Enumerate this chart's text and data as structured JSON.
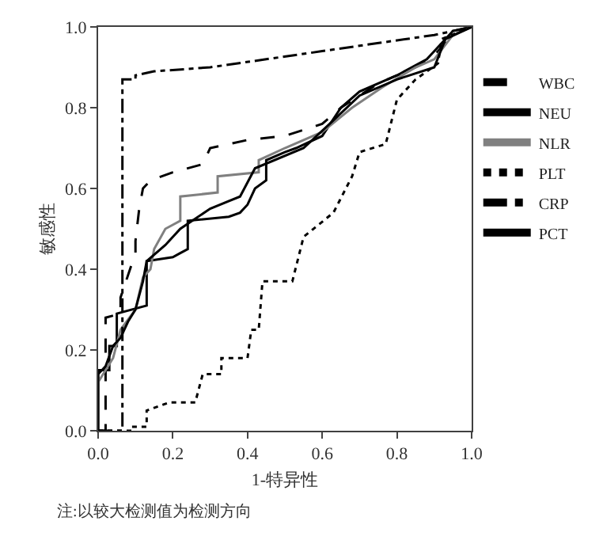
{
  "chart_data": {
    "type": "line",
    "xlabel": "1-特异性",
    "ylabel": "敏感性",
    "annotations": [
      "注:以较大检测值为检测方向"
    ],
    "xlim": [
      0,
      1
    ],
    "ylim": [
      0,
      1
    ],
    "xticks": [
      {
        "value": 0,
        "label": "0.0"
      },
      {
        "value": 0.2,
        "label": "0.2"
      },
      {
        "value": 0.4,
        "label": "0.4"
      },
      {
        "value": 0.6,
        "label": "0.6"
      },
      {
        "value": 0.8,
        "label": "0.8"
      },
      {
        "value": 1,
        "label": "1.0"
      }
    ],
    "yticks": [
      {
        "value": 0,
        "label": "0.0"
      },
      {
        "value": 0.2,
        "label": "0.2"
      },
      {
        "value": 0.4,
        "label": "0.4"
      },
      {
        "value": 0.6,
        "label": "0.6"
      },
      {
        "value": 0.8,
        "label": "0.8"
      },
      {
        "value": 1,
        "label": "1.0"
      }
    ],
    "legend": "top right",
    "marker": "none",
    "series": [
      {
        "name": "WBC",
        "color": "#000000",
        "line_style": "dashed",
        "x": [
          0,
          0.02,
          0.02,
          0.06,
          0.06,
          0.1,
          0.1,
          0.11,
          0.12,
          0.14,
          0.2,
          0.28,
          0.3,
          0.4,
          0.5,
          0.6,
          0.65,
          0.75,
          0.85,
          0.9,
          0.95,
          1
        ],
        "values": [
          0,
          0,
          0.28,
          0.29,
          0.33,
          0.44,
          0.47,
          0.55,
          0.6,
          0.62,
          0.64,
          0.66,
          0.7,
          0.72,
          0.73,
          0.76,
          0.8,
          0.86,
          0.9,
          0.93,
          0.98,
          1
        ]
      },
      {
        "name": "NEU",
        "color": "#000000",
        "line_style": "solid",
        "x": [
          0,
          0,
          0.03,
          0.03,
          0.05,
          0.05,
          0.13,
          0.13,
          0.2,
          0.22,
          0.24,
          0.24,
          0.35,
          0.38,
          0.4,
          0.42,
          0.45,
          0.45,
          0.5,
          0.53,
          0.6,
          0.65,
          0.7,
          0.8,
          0.88,
          0.91,
          0.95,
          1
        ],
        "values": [
          0,
          0.15,
          0.15,
          0.21,
          0.21,
          0.29,
          0.31,
          0.42,
          0.43,
          0.44,
          0.45,
          0.52,
          0.53,
          0.54,
          0.56,
          0.6,
          0.62,
          0.67,
          0.69,
          0.7,
          0.73,
          0.8,
          0.84,
          0.88,
          0.92,
          0.95,
          0.99,
          1
        ]
      },
      {
        "name": "NLR",
        "color": "#808080",
        "line_style": "solid",
        "x": [
          0,
          0,
          0.02,
          0.04,
          0.06,
          0.1,
          0.12,
          0.14,
          0.15,
          0.18,
          0.22,
          0.22,
          0.32,
          0.32,
          0.43,
          0.43,
          0.5,
          0.6,
          0.68,
          0.76,
          0.85,
          0.9,
          0.95,
          1
        ],
        "values": [
          0,
          0.12,
          0.15,
          0.18,
          0.25,
          0.3,
          0.38,
          0.4,
          0.45,
          0.5,
          0.52,
          0.58,
          0.59,
          0.63,
          0.64,
          0.67,
          0.7,
          0.74,
          0.8,
          0.85,
          0.9,
          0.92,
          0.98,
          1
        ]
      },
      {
        "name": "PLT",
        "color": "#000000",
        "line_style": "dotted",
        "x": [
          0,
          0.09,
          0.09,
          0.13,
          0.13,
          0.19,
          0.26,
          0.28,
          0.33,
          0.33,
          0.4,
          0.41,
          0.43,
          0.44,
          0.52,
          0.55,
          0.63,
          0.68,
          0.7,
          0.77,
          0.8,
          0.85,
          0.91,
          0.92,
          1
        ],
        "values": [
          0,
          0,
          0.01,
          0.01,
          0.05,
          0.07,
          0.07,
          0.14,
          0.14,
          0.18,
          0.18,
          0.25,
          0.25,
          0.37,
          0.37,
          0.48,
          0.54,
          0.63,
          0.69,
          0.71,
          0.82,
          0.87,
          0.91,
          0.97,
          1
        ]
      },
      {
        "name": "CRP",
        "color": "#000000",
        "line_style": "dashdot",
        "x": [
          0,
          0.065,
          0.065,
          0.1,
          0.1,
          0.15,
          0.3,
          0.6,
          0.9,
          1
        ],
        "values": [
          0,
          0,
          0.87,
          0.87,
          0.88,
          0.89,
          0.9,
          0.94,
          0.98,
          1
        ]
      },
      {
        "name": "PCT",
        "color": "#000000",
        "line_style": "solid",
        "x": [
          0,
          0,
          0.02,
          0.04,
          0.06,
          0.08,
          0.1,
          0.12,
          0.13,
          0.18,
          0.22,
          0.3,
          0.38,
          0.42,
          0.55,
          0.62,
          0.7,
          0.8,
          0.9,
          0.93,
          1
        ],
        "values": [
          0,
          0.14,
          0.16,
          0.21,
          0.23,
          0.27,
          0.3,
          0.37,
          0.42,
          0.46,
          0.5,
          0.55,
          0.58,
          0.65,
          0.7,
          0.76,
          0.83,
          0.87,
          0.9,
          0.97,
          1
        ]
      }
    ]
  }
}
